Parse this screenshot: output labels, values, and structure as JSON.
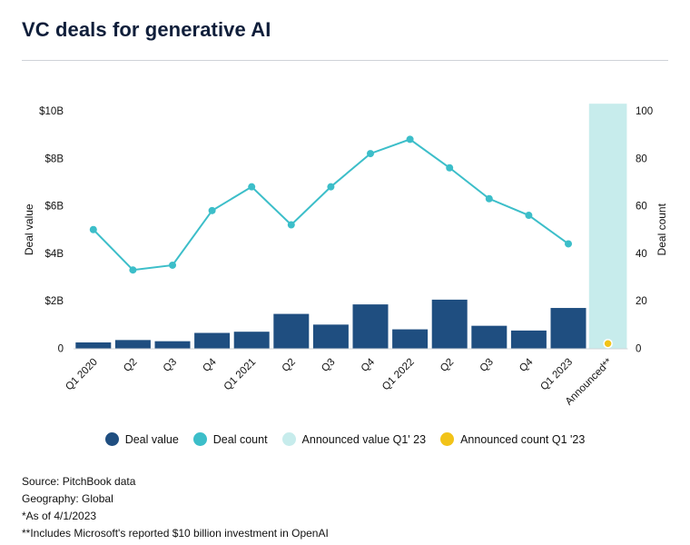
{
  "title": "VC deals for generative AI",
  "colors": {
    "deal_value": "#1f4e80",
    "deal_count": "#3cbec9",
    "announced_value": "#c7ecec",
    "announced_count": "#f2c318"
  },
  "chart_data": {
    "type": "bar",
    "categories": [
      "Q1 2020",
      "Q2",
      "Q3",
      "Q4",
      "Q1 2021",
      "Q2",
      "Q3",
      "Q4",
      "Q1 2022",
      "Q2",
      "Q3",
      "Q4",
      "Q1 2023",
      "Announced**"
    ],
    "series": [
      {
        "name": "Deal value",
        "axis": "left",
        "type": "bar",
        "unit": "billion USD",
        "values": [
          0.25,
          0.35,
          0.3,
          0.65,
          0.7,
          1.45,
          1.0,
          1.85,
          0.8,
          2.05,
          0.95,
          0.75,
          1.7,
          null
        ]
      },
      {
        "name": "Deal count",
        "axis": "right",
        "type": "line",
        "values": [
          50,
          33,
          35,
          58,
          68,
          52,
          68,
          82,
          88,
          76,
          63,
          56,
          44,
          null
        ]
      },
      {
        "name": "Announced value Q1' 23",
        "axis": "left",
        "type": "bar",
        "values": [
          null,
          null,
          null,
          null,
          null,
          null,
          null,
          null,
          null,
          null,
          null,
          null,
          null,
          10.3
        ]
      },
      {
        "name": "Announced count Q1 '23",
        "axis": "right",
        "type": "point",
        "values": [
          null,
          null,
          null,
          null,
          null,
          null,
          null,
          null,
          null,
          null,
          null,
          null,
          null,
          2
        ]
      }
    ],
    "ylabel": "Deal value",
    "y2label": "Deal count",
    "ylim": [
      0,
      10
    ],
    "y2lim": [
      0,
      100
    ],
    "yticks": [
      0,
      2,
      4,
      6,
      8,
      10
    ],
    "ytick_labels": [
      "0",
      "$2B",
      "$4B",
      "$6B",
      "$8B",
      "$10B"
    ],
    "y2ticks": [
      0,
      20,
      40,
      60,
      80,
      100
    ],
    "y2tick_labels": [
      "0",
      "20",
      "40",
      "60",
      "80",
      "100"
    ],
    "legend_position": "bottom"
  },
  "notes": [
    "Source: PitchBook data",
    "Geography: Global",
    "*As of 4/1/2023",
    "**Includes Microsoft's reported $10 billion investment in OpenAI"
  ]
}
